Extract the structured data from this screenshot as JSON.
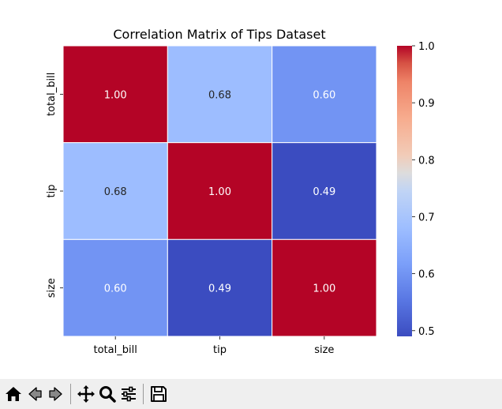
{
  "chart_data": {
    "type": "heatmap",
    "title": "Correlation Matrix of Tips Dataset",
    "row_labels": [
      "total_bill",
      "tip",
      "size"
    ],
    "col_labels": [
      "total_bill",
      "tip",
      "size"
    ],
    "values": [
      [
        1.0,
        0.68,
        0.6
      ],
      [
        0.68,
        1.0,
        0.49
      ],
      [
        0.6,
        0.49,
        1.0
      ]
    ],
    "value_labels": [
      [
        "1.00",
        "0.68",
        "0.60"
      ],
      [
        "0.68",
        "1.00",
        "0.49"
      ],
      [
        "0.60",
        "0.49",
        "1.00"
      ]
    ],
    "colormap": "coolwarm",
    "colorbar": {
      "range": [
        0.49,
        1.0
      ],
      "ticks": [
        0.5,
        0.6,
        0.7,
        0.8,
        0.9,
        1.0
      ],
      "tick_labels": [
        "0.5",
        "0.6",
        "0.7",
        "0.8",
        "0.9",
        "1.0"
      ]
    },
    "annot_dark_text_color": "#262626",
    "annot_light_text_color": "#ffffff"
  },
  "toolbar": {
    "buttons": [
      {
        "name": "home-icon",
        "tooltip": "Reset original view"
      },
      {
        "name": "back-icon",
        "tooltip": "Back to previous view"
      },
      {
        "name": "forward-icon",
        "tooltip": "Forward to next view"
      },
      {
        "name": "pan-icon",
        "tooltip": "Pan axes"
      },
      {
        "name": "zoom-icon",
        "tooltip": "Zoom to rectangle"
      },
      {
        "name": "configure-icon",
        "tooltip": "Configure subplots"
      },
      {
        "name": "save-icon",
        "tooltip": "Save the figure"
      }
    ]
  }
}
